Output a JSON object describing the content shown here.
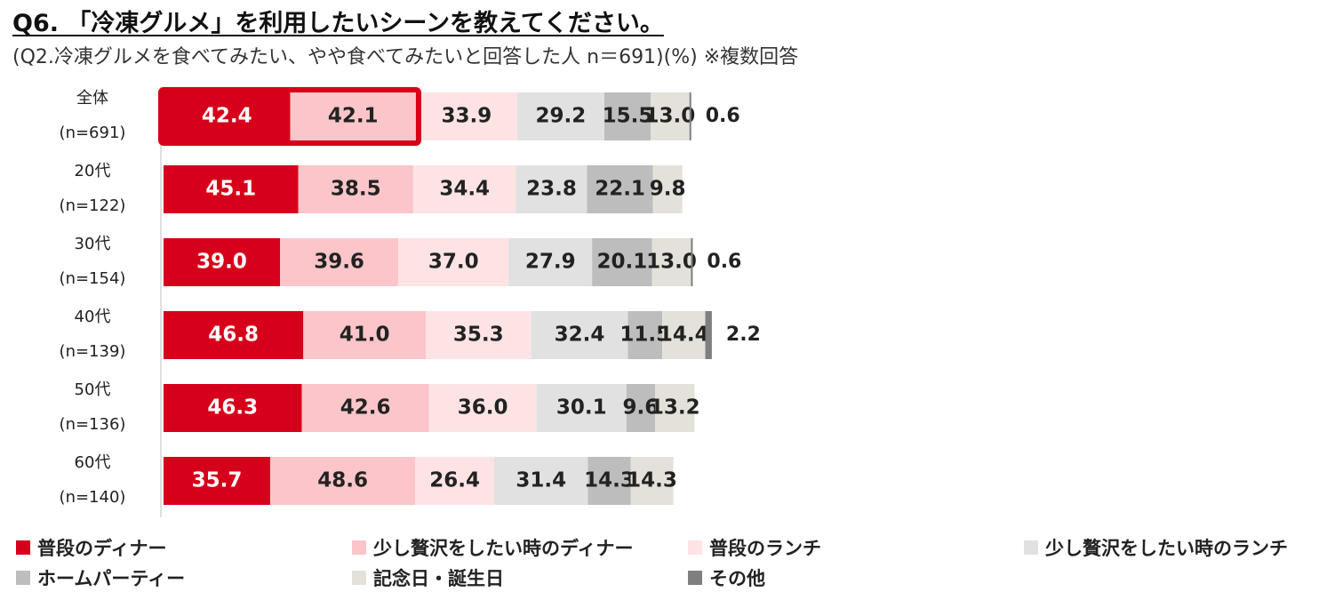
{
  "title": "Q6. 「冷凍グルメ」を利用したいシーンを教えてください。",
  "subtitle": "(Q2.冷凍グルメを食べてみたい、やや食べてみたいと回答した人 n＝691)(%) ※複数回答",
  "chart_data": {
    "type": "bar",
    "orientation": "horizontal",
    "stacked": true,
    "categories": [
      {
        "label": "全体",
        "n": "(n=691)"
      },
      {
        "label": "20代",
        "n": "(n=122)"
      },
      {
        "label": "30代",
        "n": "(n=154)"
      },
      {
        "label": "40代",
        "n": "(n=139)"
      },
      {
        "label": "50代",
        "n": "(n=136)"
      },
      {
        "label": "60代",
        "n": "(n=140)"
      }
    ],
    "series": [
      {
        "name": "普段のディナー",
        "color": "#d7001a",
        "values": [
          42.4,
          45.1,
          39.0,
          46.8,
          46.3,
          35.7
        ],
        "labels": [
          "42.4",
          "45.1",
          "39.0",
          "46.8",
          "46.3",
          "35.7"
        ]
      },
      {
        "name": "少し贅沢をしたい時のディナー",
        "color": "#fbc5c9",
        "values": [
          42.1,
          38.5,
          39.6,
          41.0,
          42.6,
          48.6
        ],
        "labels": [
          "42.1",
          "38.5",
          "39.6",
          "41.0",
          "42.6",
          "48.6"
        ]
      },
      {
        "name": "普段のランチ",
        "color": "#fde3e4",
        "values": [
          33.9,
          34.4,
          37.0,
          35.3,
          36.0,
          26.4
        ],
        "labels": [
          "33.9",
          "34.4",
          "37.0",
          "35.3",
          "36.0",
          "26.4"
        ]
      },
      {
        "name": "少し贅沢をしたい時のランチ",
        "color": "#e1e1e1",
        "values": [
          29.2,
          23.8,
          27.9,
          32.4,
          30.1,
          31.4
        ],
        "labels": [
          "29.2",
          "23.8",
          "27.9",
          "32.4",
          "30.1",
          "31.4"
        ]
      },
      {
        "name": "ホームパーティー",
        "color": "#bdbdbd",
        "values": [
          15.5,
          22.1,
          20.1,
          11.5,
          9.6,
          14.3
        ],
        "labels": [
          "15.5",
          "22.1",
          "20.1",
          "11.5",
          "9.6",
          "14.3"
        ]
      },
      {
        "name": "記念日・誕生日",
        "color": "#e3e1d9",
        "values": [
          13.0,
          9.8,
          13.0,
          14.4,
          13.2,
          14.3
        ],
        "labels": [
          "13.0",
          "9.8",
          "13.0",
          "14.4",
          "13.2",
          "14.3"
        ]
      },
      {
        "name": "その他",
        "color": "#7f7f7f",
        "values": [
          0.6,
          0.0,
          0.6,
          2.2,
          0.0,
          0.0
        ],
        "labels": [
          "0.6",
          "",
          "0.6",
          "2.2",
          "",
          ""
        ]
      }
    ],
    "highlight": {
      "row": 0,
      "series": [
        0,
        1
      ],
      "color": "#d7001a"
    },
    "legend_position": "bottom",
    "grid": false
  }
}
